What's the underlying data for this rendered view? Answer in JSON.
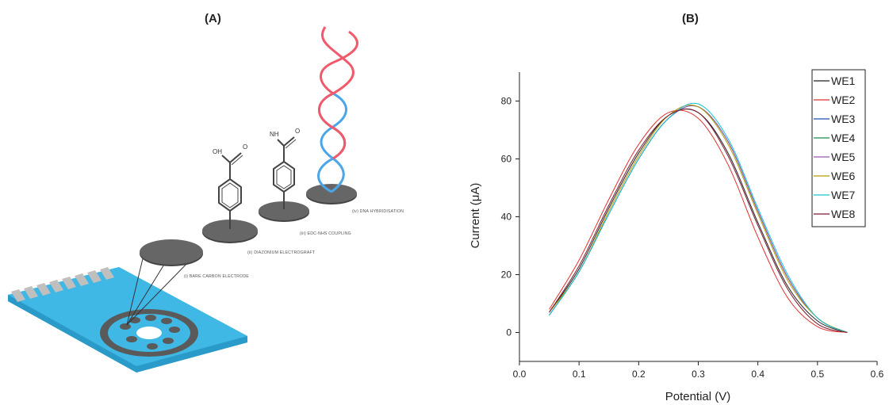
{
  "panels": {
    "a_label": "(A)",
    "b_label": "(B)"
  },
  "diagram": {
    "steps": [
      "(i) BARE CARBON ELECTRODE",
      "(ii) DIAZONIUM ELECTROGRAFT",
      "(iii) EDC-NHS COUPLING",
      "(iv) DNA HYBRIDISATION"
    ],
    "chem_labels": {
      "oh": "OH",
      "o1": "O",
      "nh": "NH",
      "o2": "O"
    },
    "colors": {
      "substrate": "#3fb8e6",
      "substrate_side": "#2a9bc8",
      "electrode": "#5f5f5f",
      "dna_red": "#f05a6a",
      "dna_blue": "#4aa6e8"
    }
  },
  "chart_data": {
    "type": "line",
    "title": "",
    "xlabel": "Potential (V)",
    "ylabel": "Current (μA)",
    "xlim": [
      0.0,
      0.6
    ],
    "ylim": [
      -10,
      90
    ],
    "xticks": [
      0.0,
      0.1,
      0.2,
      0.3,
      0.4,
      0.5,
      0.6
    ],
    "yticks": [
      0,
      20,
      40,
      60,
      80
    ],
    "legend_position": "top-right",
    "grid": false,
    "x": [
      0.05,
      0.1,
      0.15,
      0.2,
      0.25,
      0.3,
      0.35,
      0.4,
      0.45,
      0.5,
      0.55
    ],
    "series": [
      {
        "name": "WE1",
        "color": "#222222",
        "values": [
          7,
          22,
          43,
          62,
          75,
          76,
          62,
          38,
          16,
          4,
          0
        ]
      },
      {
        "name": "WE2",
        "color": "#e03030",
        "values": [
          8,
          25,
          46,
          65,
          76,
          74,
          58,
          33,
          12,
          2,
          0
        ]
      },
      {
        "name": "WE3",
        "color": "#1f4fb5",
        "values": [
          6,
          21,
          41,
          60,
          74,
          78,
          66,
          42,
          19,
          5,
          0
        ]
      },
      {
        "name": "WE4",
        "color": "#1a8a4a",
        "values": [
          6,
          21,
          41,
          60,
          74,
          78,
          66,
          42,
          19,
          5,
          0
        ]
      },
      {
        "name": "WE5",
        "color": "#9b59b6",
        "values": [
          6,
          21,
          41,
          60,
          74,
          78,
          66,
          42,
          19,
          5,
          0
        ]
      },
      {
        "name": "WE6",
        "color": "#b59a00",
        "values": [
          7,
          21,
          42,
          61,
          75,
          78,
          65,
          41,
          18,
          5,
          0
        ]
      },
      {
        "name": "WE7",
        "color": "#18c3d8",
        "values": [
          6,
          21,
          41,
          60,
          74,
          79,
          67,
          43,
          20,
          5,
          0
        ]
      },
      {
        "name": "WE8",
        "color": "#7a1a30",
        "values": [
          7,
          23,
          44,
          63,
          75,
          76,
          61,
          37,
          15,
          3,
          0
        ]
      }
    ]
  }
}
